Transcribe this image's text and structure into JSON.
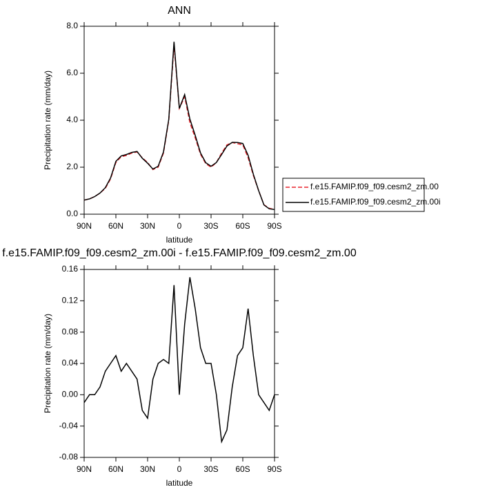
{
  "chart_data": [
    {
      "type": "line",
      "title": "ANN",
      "xlabel": "latitude",
      "ylabel": "Precipitation rate (mm/day)",
      "x": [
        90,
        85,
        80,
        75,
        70,
        65,
        60,
        55,
        50,
        45,
        40,
        35,
        30,
        25,
        20,
        15,
        10,
        5,
        0,
        -5,
        -10,
        -15,
        -20,
        -25,
        -30,
        -35,
        -40,
        -45,
        -50,
        -55,
        -60,
        -65,
        -70,
        -75,
        -80,
        -85,
        -90
      ],
      "series": [
        {
          "name": "f.e15.FAMIP.f09_f09.cesm2_zm.00",
          "color": "#e8242b",
          "dashed": true,
          "values": [
            0.6,
            0.65,
            0.75,
            0.9,
            1.1,
            1.5,
            2.2,
            2.45,
            2.5,
            2.6,
            2.65,
            2.4,
            2.2,
            1.9,
            2.0,
            2.6,
            4.0,
            7.2,
            4.5,
            5.0,
            3.9,
            3.25,
            2.55,
            2.15,
            2.0,
            2.2,
            2.6,
            2.95,
            3.05,
            3.0,
            2.95,
            2.4,
            1.65,
            1.0,
            0.4,
            0.25,
            0.2
          ]
        },
        {
          "name": "f.e15.FAMIP.f09_f09.cesm2_zm.00i",
          "color": "#000000",
          "dashed": false,
          "values": [
            0.6,
            0.65,
            0.75,
            0.9,
            1.13,
            1.54,
            2.25,
            2.48,
            2.54,
            2.63,
            2.67,
            2.38,
            2.17,
            1.92,
            2.04,
            2.65,
            4.04,
            7.34,
            4.5,
            5.09,
            4.05,
            3.36,
            2.61,
            2.19,
            2.04,
            2.2,
            2.54,
            2.9,
            3.06,
            3.05,
            3.01,
            2.51,
            1.7,
            1.0,
            0.39,
            0.23,
            0.2
          ]
        }
      ],
      "xlim": [
        90,
        -90
      ],
      "xticks": [
        {
          "value": 90,
          "label": "90N"
        },
        {
          "value": 60,
          "label": "60N"
        },
        {
          "value": 30,
          "label": "30N"
        },
        0,
        {
          "value": -30,
          "label": "30S"
        },
        {
          "value": -60,
          "label": "60S"
        },
        {
          "value": -90,
          "label": "90S"
        }
      ],
      "ylim": [
        0,
        8
      ],
      "yticks": [
        {
          "value": 0,
          "label": "0.0"
        },
        {
          "value": 2,
          "label": "2.0"
        },
        {
          "value": 4,
          "label": "4.0"
        },
        {
          "value": 6,
          "label": "6.0"
        },
        {
          "value": 8,
          "label": "8.0"
        }
      ],
      "legend": "right"
    },
    {
      "type": "line",
      "title": "f.e15.FAMIP.f09_f09.cesm2_zm.00i - f.e15.FAMIP.f09_f09.cesm2_zm.00",
      "xlabel": "latitude",
      "ylabel": "Precipitation rate (mm/day)",
      "x": [
        90,
        85,
        80,
        75,
        70,
        65,
        60,
        55,
        50,
        45,
        40,
        35,
        30,
        25,
        20,
        15,
        10,
        5,
        0,
        -5,
        -10,
        -15,
        -20,
        -25,
        -30,
        -35,
        -40,
        -45,
        -50,
        -55,
        -60,
        -65,
        -70,
        -75,
        -80,
        -85,
        -90
      ],
      "color": "#000000",
      "values": [
        -0.01,
        0.0,
        0.0,
        0.01,
        0.03,
        0.04,
        0.05,
        0.03,
        0.04,
        0.03,
        0.02,
        -0.02,
        -0.03,
        0.02,
        0.04,
        0.045,
        0.04,
        0.14,
        0.0,
        0.09,
        0.15,
        0.11,
        0.06,
        0.04,
        0.04,
        0.0,
        -0.06,
        -0.045,
        0.01,
        0.05,
        0.06,
        0.11,
        0.05,
        0.0,
        -0.01,
        -0.02,
        0.0
      ],
      "xlim": [
        90,
        -90
      ],
      "xticks": [
        {
          "value": 90,
          "label": "90N"
        },
        {
          "value": 60,
          "label": "60N"
        },
        {
          "value": 30,
          "label": "30N"
        },
        0,
        {
          "value": -30,
          "label": "30S"
        },
        {
          "value": -60,
          "label": "60S"
        },
        {
          "value": -90,
          "label": "90S"
        }
      ],
      "ylim": [
        -0.08,
        0.16
      ],
      "yticks": [
        -0.08,
        -0.04,
        {
          "value": 0,
          "label": "0.00"
        },
        0.04,
        0.08,
        0.12,
        0.16
      ]
    }
  ]
}
